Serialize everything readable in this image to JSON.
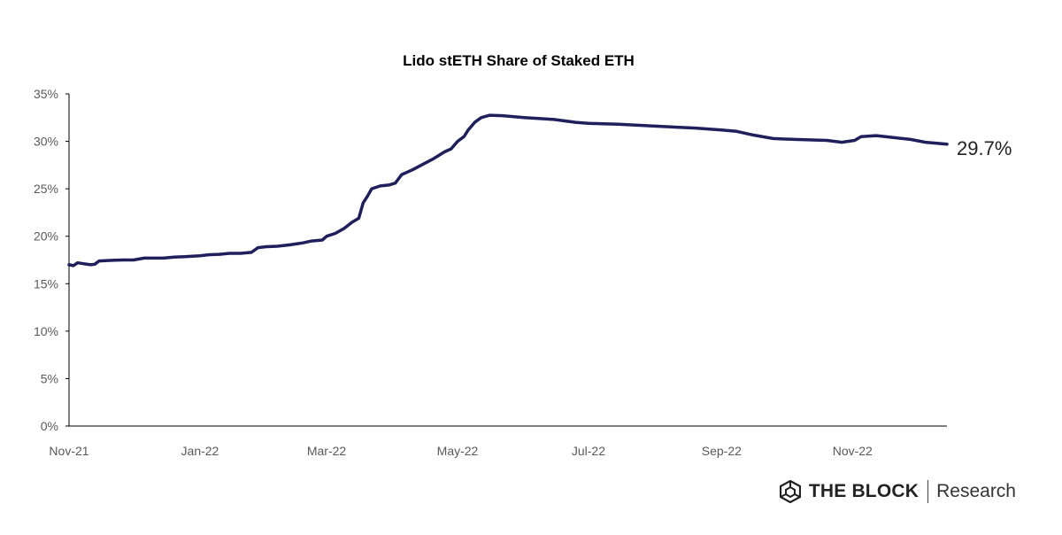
{
  "chart_data": {
    "type": "line",
    "title": "Lido stETH Share of Staked ETH",
    "xlabel": "",
    "ylabel": "",
    "ylim": [
      0,
      35
    ],
    "y_ticks": [
      "0%",
      "5%",
      "10%",
      "15%",
      "20%",
      "25%",
      "30%",
      "35%"
    ],
    "x_ticks": [
      "Nov-21",
      "Jan-22",
      "Mar-22",
      "May-22",
      "Jul-22",
      "Sep-22",
      "Nov-22"
    ],
    "x_tick_dates": [
      "2021-11-01",
      "2022-01-01",
      "2022-03-01",
      "2022-05-01",
      "2022-07-01",
      "2022-09-01",
      "2022-11-01"
    ],
    "xlim": [
      "2021-11-01",
      "2022-12-15"
    ],
    "grid": false,
    "legend": "none",
    "end_label": "29.7%",
    "series": [
      {
        "color": "#1f1f5c",
        "points": [
          [
            "2021-11-01",
            17.0
          ],
          [
            "2021-11-03",
            16.9
          ],
          [
            "2021-11-05",
            17.2
          ],
          [
            "2021-11-08",
            17.1
          ],
          [
            "2021-11-11",
            17.0
          ],
          [
            "2021-11-13",
            17.05
          ],
          [
            "2021-11-15",
            17.4
          ],
          [
            "2021-11-20",
            17.45
          ],
          [
            "2021-11-26",
            17.5
          ],
          [
            "2021-12-01",
            17.5
          ],
          [
            "2021-12-06",
            17.7
          ],
          [
            "2021-12-10",
            17.7
          ],
          [
            "2021-12-15",
            17.7
          ],
          [
            "2021-12-20",
            17.8
          ],
          [
            "2021-12-25",
            17.85
          ],
          [
            "2022-01-01",
            17.95
          ],
          [
            "2022-01-05",
            18.05
          ],
          [
            "2022-01-10",
            18.1
          ],
          [
            "2022-01-15",
            18.2
          ],
          [
            "2022-01-20",
            18.2
          ],
          [
            "2022-01-25",
            18.3
          ],
          [
            "2022-01-28",
            18.8
          ],
          [
            "2022-02-01",
            18.9
          ],
          [
            "2022-02-06",
            18.95
          ],
          [
            "2022-02-12",
            19.1
          ],
          [
            "2022-02-18",
            19.3
          ],
          [
            "2022-02-22",
            19.5
          ],
          [
            "2022-02-27",
            19.6
          ],
          [
            "2022-03-01",
            20.0
          ],
          [
            "2022-03-05",
            20.3
          ],
          [
            "2022-03-09",
            20.8
          ],
          [
            "2022-03-13",
            21.5
          ],
          [
            "2022-03-16",
            21.9
          ],
          [
            "2022-03-18",
            23.5
          ],
          [
            "2022-03-20",
            24.2
          ],
          [
            "2022-03-22",
            25.0
          ],
          [
            "2022-03-26",
            25.3
          ],
          [
            "2022-03-30",
            25.4
          ],
          [
            "2022-04-02",
            25.6
          ],
          [
            "2022-04-05",
            26.5
          ],
          [
            "2022-04-10",
            27.0
          ],
          [
            "2022-04-15",
            27.6
          ],
          [
            "2022-04-20",
            28.2
          ],
          [
            "2022-04-25",
            28.9
          ],
          [
            "2022-04-28",
            29.2
          ],
          [
            "2022-05-01",
            30.0
          ],
          [
            "2022-05-04",
            30.5
          ],
          [
            "2022-05-06",
            31.2
          ],
          [
            "2022-05-09",
            32.0
          ],
          [
            "2022-05-12",
            32.5
          ],
          [
            "2022-05-16",
            32.75
          ],
          [
            "2022-05-22",
            32.7
          ],
          [
            "2022-06-01",
            32.5
          ],
          [
            "2022-06-15",
            32.3
          ],
          [
            "2022-06-25",
            32.0
          ],
          [
            "2022-07-01",
            31.9
          ],
          [
            "2022-07-15",
            31.8
          ],
          [
            "2022-08-01",
            31.6
          ],
          [
            "2022-08-20",
            31.4
          ],
          [
            "2022-09-01",
            31.2
          ],
          [
            "2022-09-08",
            31.05
          ],
          [
            "2022-09-15",
            30.7
          ],
          [
            "2022-09-25",
            30.3
          ],
          [
            "2022-10-05",
            30.2
          ],
          [
            "2022-10-20",
            30.1
          ],
          [
            "2022-10-27",
            29.9
          ],
          [
            "2022-11-02",
            30.1
          ],
          [
            "2022-11-05",
            30.5
          ],
          [
            "2022-11-12",
            30.6
          ],
          [
            "2022-11-20",
            30.4
          ],
          [
            "2022-11-28",
            30.2
          ],
          [
            "2022-12-05",
            29.9
          ],
          [
            "2022-12-15",
            29.7
          ]
        ]
      }
    ]
  },
  "branding": {
    "name": "THE BLOCK",
    "sub": "Research",
    "logo_icon": "cube-logo-icon"
  }
}
